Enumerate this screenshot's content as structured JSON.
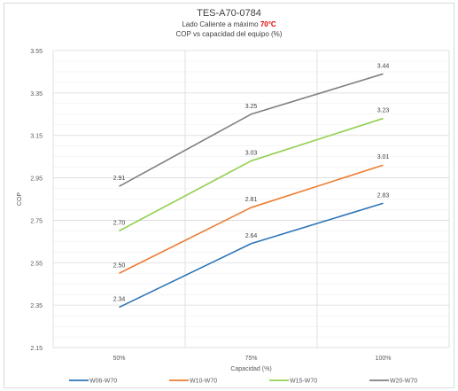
{
  "chart_data": {
    "type": "line",
    "title": "TES-A70-0784",
    "subtitle_prefix": "Lado Caliente a máximo ",
    "subtitle_highlight": "70°C",
    "subtitle_line2": "COP vs capacidad del equipo (%)",
    "highlight_color": "#e00000",
    "xlabel": "Capacidad (%)",
    "ylabel": "COP",
    "categories": [
      "50%",
      "75%",
      "100%"
    ],
    "ylim": [
      2.15,
      3.55
    ],
    "yticks": [
      "2.15",
      "2.35",
      "2.55",
      "2.75",
      "2.95",
      "3.15",
      "3.35",
      "3.55"
    ],
    "grid": true,
    "legend_position": "bottom",
    "series": [
      {
        "name": "W06-W70",
        "color": "#2e75b6",
        "values": [
          2.34,
          2.64,
          2.83
        ],
        "labels": [
          "2.34",
          "2.64",
          "2.83"
        ]
      },
      {
        "name": "W10-W70",
        "color": "#ed7d31",
        "values": [
          2.5,
          2.81,
          3.01
        ],
        "labels": [
          "2.50",
          "2.81",
          "3.01"
        ]
      },
      {
        "name": "W15-W70",
        "color": "#92d050",
        "values": [
          2.7,
          3.03,
          3.23
        ],
        "labels": [
          "2.70",
          "3.03",
          "3.23"
        ]
      },
      {
        "name": "W20-W70",
        "color": "#808080",
        "values": [
          2.91,
          3.25,
          3.44
        ],
        "labels": [
          "2.91",
          "3.25",
          "3.44"
        ]
      }
    ]
  }
}
